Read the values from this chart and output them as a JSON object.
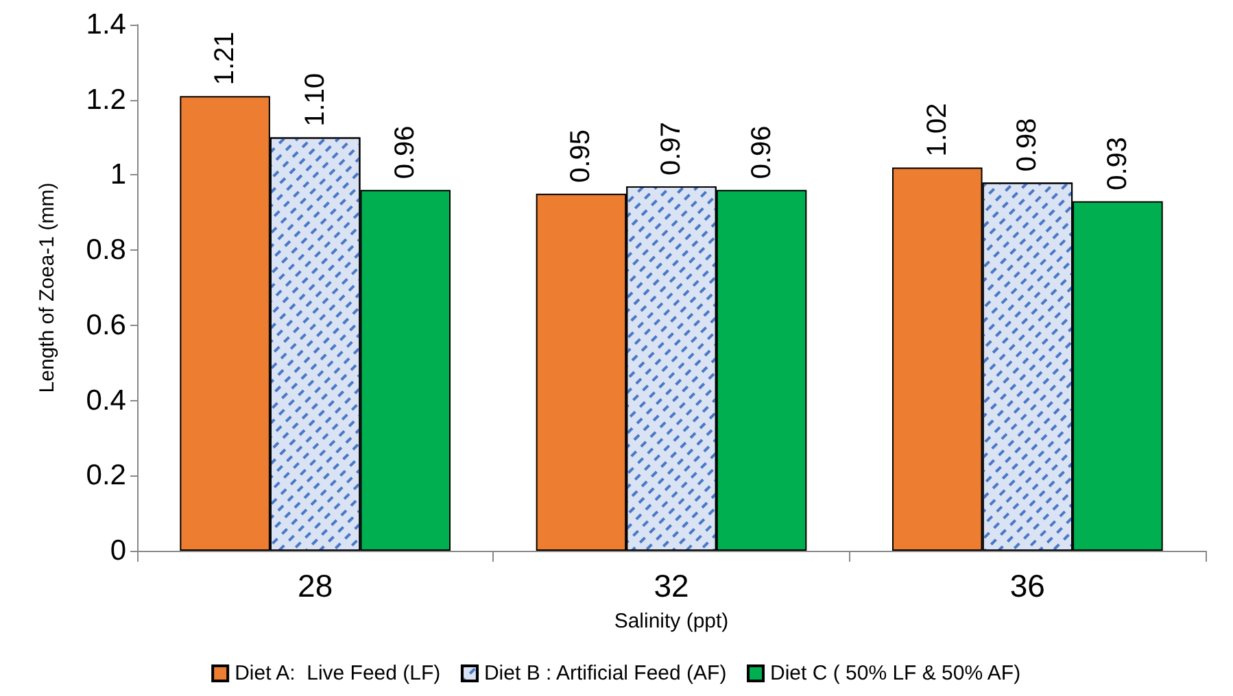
{
  "chart_data": {
    "type": "bar",
    "xlabel": "Salinity (ppt)",
    "ylabel": "Length of Zoea-1 (mm)",
    "categories": [
      "28",
      "32",
      "36"
    ],
    "series": [
      {
        "name": "Diet A:  Live Feed (LF)",
        "color": "#ed7d31",
        "values": [
          1.21,
          0.95,
          1.02
        ],
        "value_labels": [
          "1.21",
          "0.95",
          "1.02"
        ]
      },
      {
        "name": "Diet B : Artificial Feed (AF)",
        "color": "#dae3f3",
        "values": [
          1.1,
          0.97,
          0.98
        ],
        "value_labels": [
          "1.10",
          "0.97",
          "0.98"
        ]
      },
      {
        "name": "Diet C ( 50% LF & 50% AF)",
        "color": "#00b050",
        "values": [
          0.96,
          0.96,
          0.93
        ],
        "value_labels": [
          "0.96",
          "0.96",
          "0.93"
        ]
      }
    ],
    "ylim": [
      0,
      1.4
    ],
    "yticks": [
      0,
      0.2,
      0.4,
      0.6,
      0.8,
      1,
      1.2,
      1.4
    ],
    "grid": false,
    "legend": "bottom"
  }
}
